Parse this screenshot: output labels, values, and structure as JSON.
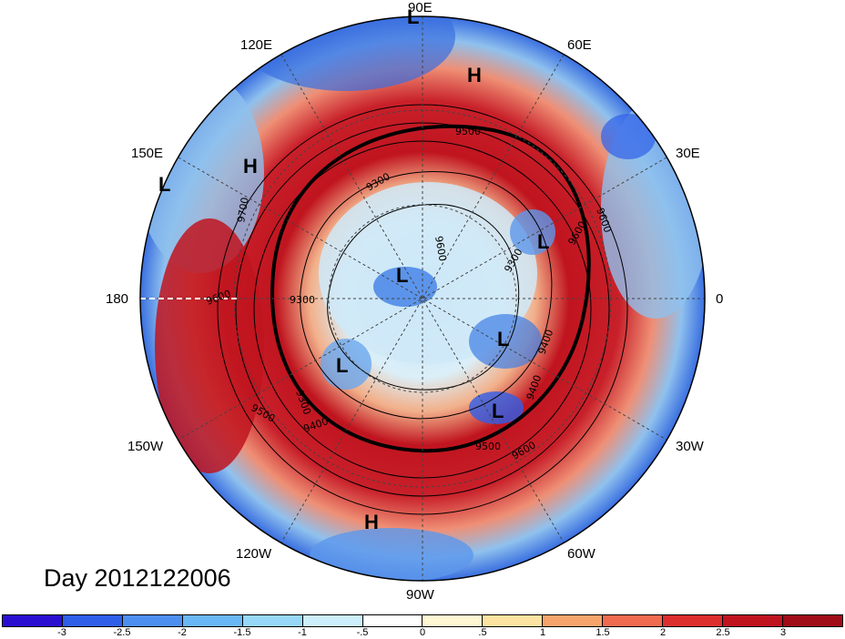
{
  "title": "Day 2012122006",
  "longitude_labels": [
    {
      "id": "90E",
      "text": "90E"
    },
    {
      "id": "60E",
      "text": "60E"
    },
    {
      "id": "30E",
      "text": "30E"
    },
    {
      "id": "0",
      "text": "0"
    },
    {
      "id": "30W",
      "text": "30W"
    },
    {
      "id": "60W",
      "text": "60W"
    },
    {
      "id": "90W",
      "text": "90W"
    },
    {
      "id": "120W",
      "text": "120W"
    },
    {
      "id": "150W",
      "text": "150W"
    },
    {
      "id": "180",
      "text": "180"
    },
    {
      "id": "150E",
      "text": "150E"
    },
    {
      "id": "120E",
      "text": "120E"
    }
  ],
  "pressure_centers": [
    {
      "text": "L"
    },
    {
      "text": "H"
    },
    {
      "text": "H"
    },
    {
      "text": "L"
    },
    {
      "text": "L"
    },
    {
      "text": "L"
    },
    {
      "text": "L"
    },
    {
      "text": "L"
    },
    {
      "text": "L"
    },
    {
      "text": "H"
    }
  ],
  "contour_labels": [
    "9500",
    "9600",
    "9700",
    "9600",
    "9300",
    "9600",
    "9500",
    "9400",
    "9300",
    "9400",
    "9500",
    "9600",
    "9600",
    "9400",
    "9300",
    "9300"
  ],
  "colorbar": {
    "colors": [
      "#2b0fd1",
      "#2f5fe8",
      "#4d8ff0",
      "#6ab7f5",
      "#97d8f8",
      "#cdeffb",
      "#ffffff",
      "#fff6d2",
      "#fde3a1",
      "#f6a46c",
      "#ef6a4f",
      "#dd2e2e",
      "#c0141f",
      "#a00c17"
    ],
    "ticks": [
      "-3",
      "-2.5",
      "-2",
      "-1.5",
      "-1",
      "-.5",
      "0",
      ".5",
      "1",
      "1.5",
      "2",
      "2.5",
      "3"
    ]
  }
}
